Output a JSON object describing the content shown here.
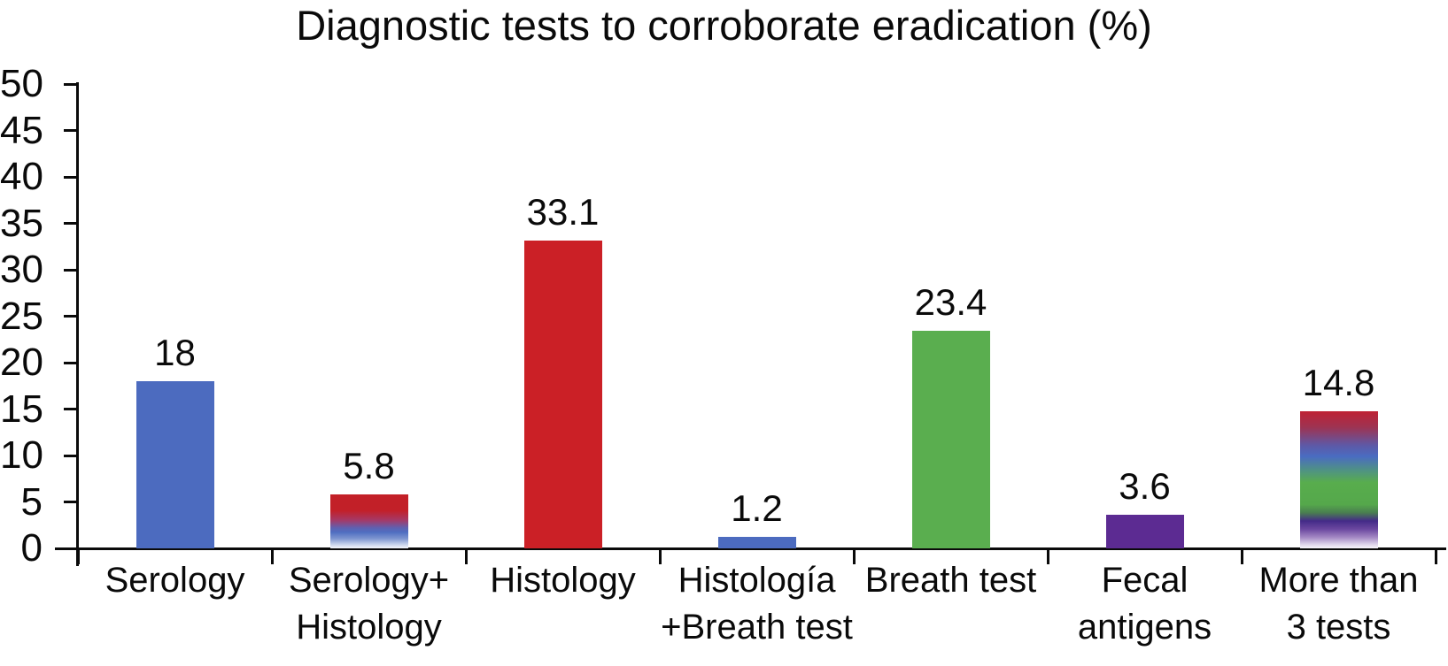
{
  "chart_data": {
    "type": "bar",
    "title": "Diagnostic tests to corroborate eradication (%)",
    "xlabel": "",
    "ylabel": "",
    "ylim": [
      0,
      50
    ],
    "yticks": [
      0,
      5,
      10,
      15,
      20,
      25,
      30,
      35,
      40,
      45,
      50
    ],
    "grid": false,
    "legend": "none",
    "categories": [
      "Serology",
      "Serology+Histology",
      "Histology",
      "Histología+Breath test",
      "Breath test",
      "Fecal antigens",
      "More than 3 tests"
    ],
    "values": [
      18,
      5.8,
      33.1,
      1.2,
      23.4,
      3.6,
      14.8
    ],
    "colors": {
      "blue": "#4c6bbf",
      "red": "#cb2026",
      "green": "#5aae4f",
      "purple": "#5c2b92",
      "axis": "#0a0a0a",
      "text": "#0a0a0a",
      "background": "#ffffff"
    },
    "bars": [
      {
        "category_lines": [
          "Serology"
        ],
        "value": 18,
        "value_label": "18",
        "fill": {
          "type": "solid",
          "color": "#4c6bbf"
        }
      },
      {
        "category_lines": [
          "Serology+",
          "Histology"
        ],
        "value": 5.8,
        "value_label": "5.8",
        "fill": {
          "type": "gradient",
          "direction": "to bottom",
          "stops": [
            [
              "#c32027",
              "0%"
            ],
            [
              "#c22029",
              "30%"
            ],
            [
              "#a43a68",
              "48%"
            ],
            [
              "#5f60b0",
              "62%"
            ],
            [
              "#4f6ec1",
              "70%"
            ],
            [
              "#7e95d0",
              "82%"
            ],
            [
              "#cad5ec",
              "93%"
            ],
            [
              "#f4f7fc",
              "100%"
            ]
          ]
        }
      },
      {
        "category_lines": [
          "Histology"
        ],
        "value": 33.1,
        "value_label": "33.1",
        "fill": {
          "type": "solid",
          "color": "#cb2026"
        }
      },
      {
        "category_lines": [
          "Histología",
          "+Breath test"
        ],
        "value": 1.2,
        "value_label": "1.2",
        "fill": {
          "type": "solid",
          "color": "#4c6bbf"
        }
      },
      {
        "category_lines": [
          "Breath test"
        ],
        "value": 23.4,
        "value_label": "23.4",
        "fill": {
          "type": "solid",
          "color": "#5aae4f"
        }
      },
      {
        "category_lines": [
          "Fecal",
          "antigens"
        ],
        "value": 3.6,
        "value_label": "3.6",
        "fill": {
          "type": "solid",
          "color": "#5c2b92"
        }
      },
      {
        "category_lines": [
          "More than",
          "3 tests"
        ],
        "value": 14.8,
        "value_label": "14.8",
        "fill": {
          "type": "gradient",
          "direction": "to bottom",
          "stops": [
            [
              "#bf2133",
              "0%"
            ],
            [
              "#9c3454",
              "12%"
            ],
            [
              "#5d59a7",
              "25%"
            ],
            [
              "#4a6cc1",
              "33%"
            ],
            [
              "#4f9284",
              "43%"
            ],
            [
              "#58ad4d",
              "52%"
            ],
            [
              "#55a84b",
              "68%"
            ],
            [
              "#4a7e50",
              "74%"
            ],
            [
              "#442b88",
              "80%"
            ],
            [
              "#6b48a0",
              "86%"
            ],
            [
              "#a488c4",
              "92%"
            ],
            [
              "#ddd3ea",
              "97%"
            ],
            [
              "#f8f6fb",
              "100%"
            ]
          ]
        }
      }
    ]
  }
}
